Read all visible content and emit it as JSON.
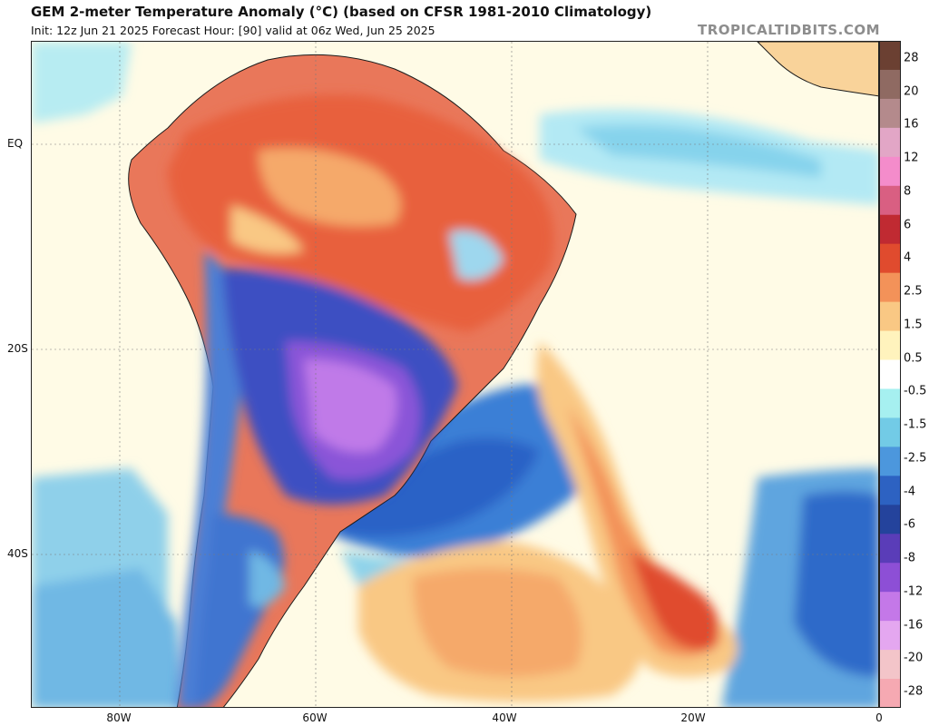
{
  "header": {
    "title": "GEM 2-meter Temperature Anomaly (°C) (based on CFSR 1981-2010 Climatology)",
    "subtitle": "Init: 12z Jun 21 2025   Forecast Hour: [90]   valid at 06z Wed, Jun 25 2025",
    "site": "TROPICALTIDBITS.COM"
  },
  "axes": {
    "lat_labels": [
      "EQ",
      "20S",
      "40S"
    ],
    "lon_labels": [
      "80W",
      "60W",
      "40W",
      "20W",
      "0"
    ]
  },
  "colorbar": {
    "labels": [
      "28",
      "20",
      "16",
      "12",
      "8",
      "6",
      "4",
      "2.5",
      "1.5",
      "0.5",
      "-0.5",
      "-1.5",
      "-2.5",
      "-4",
      "-6",
      "-8",
      "-12",
      "-16",
      "-20",
      "-28"
    ],
    "colors": [
      "#6b4032",
      "#8f6a62",
      "#b48a8c",
      "#e2a6c6",
      "#f48ccb",
      "#d95f82",
      "#c02a32",
      "#e04b2e",
      "#f39259",
      "#f9c884",
      "#fff3bd",
      "#ffffff",
      "#a6f0f0",
      "#72cbe6",
      "#4c97dd",
      "#2d62c2",
      "#24439c",
      "#5a3db8",
      "#8d4fd6",
      "#c478e8",
      "#e4a7f0",
      "#f3c5c9",
      "#f6a9b2"
    ]
  }
}
